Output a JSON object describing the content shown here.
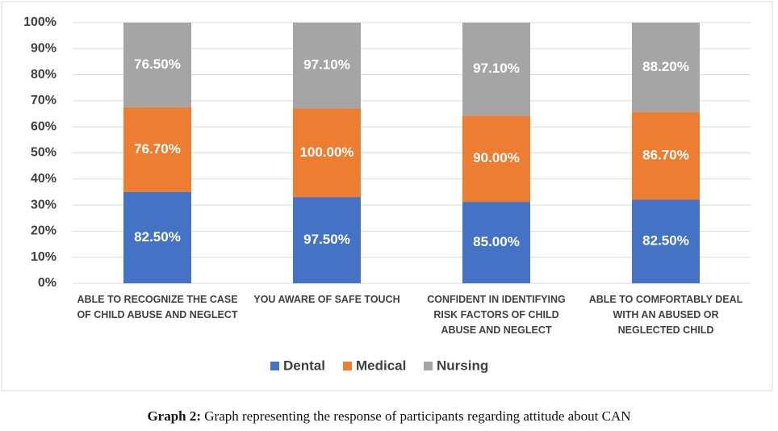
{
  "chart_data": {
    "type": "bar",
    "stacking": "percent",
    "categories": [
      "ABLE TO RECOGNIZE THE CASE OF CHILD ABUSE AND NEGLECT",
      "YOU AWARE OF SAFE TOUCH",
      "CONFIDENT IN IDENTIFYING RISK FACTORS OF CHILD ABUSE AND NEGLECT",
      "ABLE TO COMFORTABLY DEAL WITH AN ABUSED OR NEGLECTED CHILD"
    ],
    "series": [
      {
        "name": "Dental",
        "color": "#4472c4",
        "values": [
          82.5,
          97.5,
          85.0,
          82.5
        ],
        "value_labels": [
          "82.50%",
          "97.50%",
          "85.00%",
          "82.50%"
        ]
      },
      {
        "name": "Medical",
        "color": "#ed7d31",
        "values": [
          76.7,
          100.0,
          90.0,
          86.7
        ],
        "value_labels": [
          "76.70%",
          "100.00%",
          "90.00%",
          "86.70%"
        ]
      },
      {
        "name": "Nursing",
        "color": "#a5a5a5",
        "values": [
          76.5,
          97.1,
          97.1,
          88.2
        ],
        "value_labels": [
          "76.50%",
          "97.10%",
          "97.10%",
          "88.20%"
        ]
      }
    ],
    "ylim": [
      0,
      100
    ],
    "yticks": [
      {
        "value": 0,
        "label": "0%"
      },
      {
        "value": 10,
        "label": "10%"
      },
      {
        "value": 20,
        "label": "20%"
      },
      {
        "value": 30,
        "label": "30%"
      },
      {
        "value": 40,
        "label": "40%"
      },
      {
        "value": 50,
        "label": "50%"
      },
      {
        "value": 60,
        "label": "60%"
      },
      {
        "value": 70,
        "label": "70%"
      },
      {
        "value": 80,
        "label": "80%"
      },
      {
        "value": 90,
        "label": "90%"
      },
      {
        "value": 100,
        "label": "100%"
      }
    ],
    "grid": true,
    "legend": "bottom"
  },
  "caption": {
    "label": "Graph 2:",
    "text": "Graph representing the response of participants regarding attitude about CAN"
  }
}
